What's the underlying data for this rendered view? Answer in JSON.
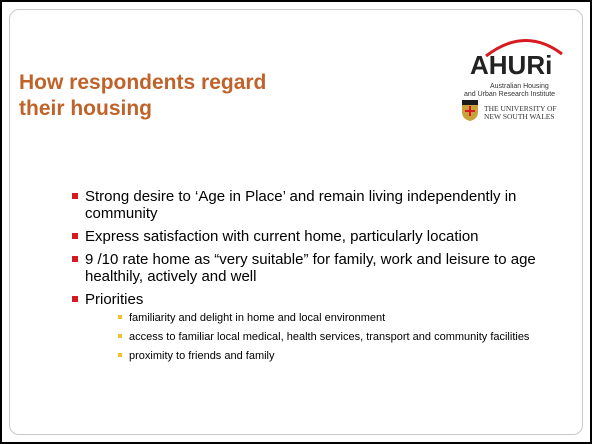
{
  "header": {
    "title": "How respondents regard their housing"
  },
  "logo": {
    "name": "AHURi",
    "line1": "Australian Housing",
    "line2": "and Urban Research Institute",
    "university_line1": "THE UNIVERSITY OF",
    "university_line2": "NEW SOUTH WALES"
  },
  "bullets": [
    {
      "text": "Strong desire to ‘Age in Place’ and remain living independently in community"
    },
    {
      "text": "Express satisfaction with current home, particularly location"
    },
    {
      "text": "9 /10 rate home as “very suitable” for family, work and leisure to age healthily, actively and well"
    },
    {
      "text": "Priorities",
      "sub": [
        "familiarity and delight in home and local environment",
        "access to familiar local medical, health services, transport and community facilities",
        "proximity to friends and family"
      ]
    }
  ]
}
